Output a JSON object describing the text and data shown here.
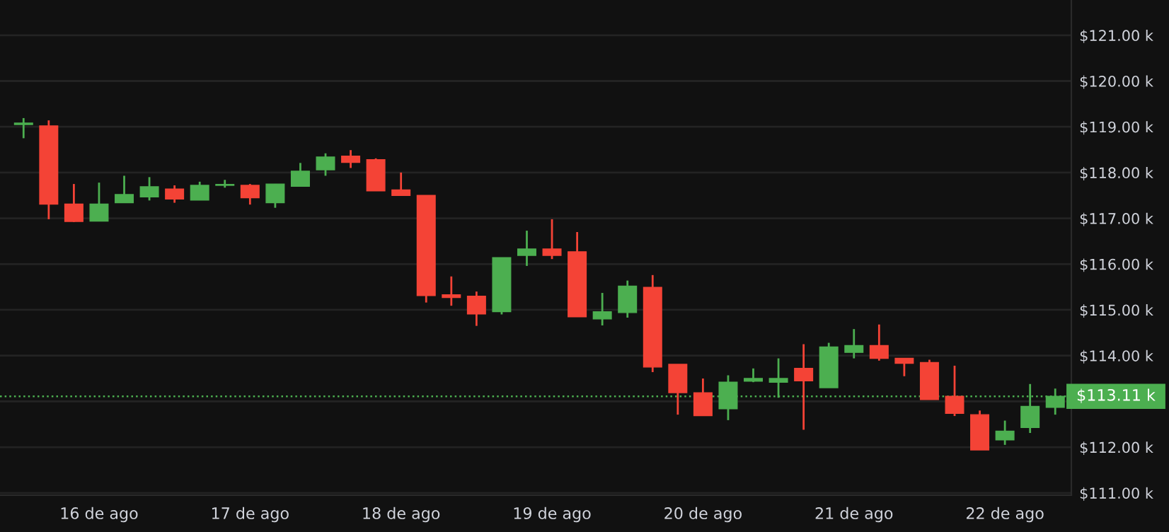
{
  "chart_data": {
    "type": "candlestick",
    "x": [
      15.5,
      15.6667,
      15.8333,
      16,
      16.1667,
      16.3333,
      16.5,
      16.6667,
      16.8333,
      17,
      17.1667,
      17.3333,
      17.5,
      17.6667,
      17.8333,
      18,
      18.1667,
      18.3333,
      18.5,
      18.6667,
      18.8333,
      19,
      19.1667,
      19.3333,
      19.5,
      19.6667,
      19.8333,
      20,
      20.1667,
      20.3333,
      20.5,
      20.6667,
      20.8333,
      21,
      21.1667,
      21.3333,
      21.5,
      21.6667,
      21.8333,
      22,
      22.1667,
      22.3333
    ],
    "ohlc": [
      [
        119.05,
        119.19,
        118.75,
        119.08
      ],
      [
        119.02,
        119.14,
        116.98,
        117.31
      ],
      [
        117.31,
        117.75,
        116.92,
        116.93
      ],
      [
        116.94,
        117.78,
        116.94,
        117.31
      ],
      [
        117.34,
        117.93,
        117.34,
        117.52
      ],
      [
        117.47,
        117.9,
        117.39,
        117.69
      ],
      [
        117.64,
        117.72,
        117.34,
        117.42
      ],
      [
        117.4,
        117.8,
        117.4,
        117.72
      ],
      [
        117.72,
        117.84,
        117.67,
        117.74
      ],
      [
        117.72,
        117.75,
        117.3,
        117.45
      ],
      [
        117.34,
        117.75,
        117.23,
        117.75
      ],
      [
        117.7,
        118.21,
        117.7,
        118.03
      ],
      [
        118.06,
        118.42,
        117.93,
        118.34
      ],
      [
        118.36,
        118.49,
        118.1,
        118.22
      ],
      [
        118.28,
        118.31,
        117.6,
        117.6
      ],
      [
        117.62,
        118.0,
        117.5,
        117.5
      ],
      [
        117.5,
        117.5,
        115.16,
        115.31
      ],
      [
        115.33,
        115.73,
        115.09,
        115.27
      ],
      [
        115.3,
        115.4,
        114.65,
        114.91
      ],
      [
        114.96,
        116.14,
        114.9,
        116.14
      ],
      [
        116.19,
        116.73,
        115.96,
        116.33
      ],
      [
        116.33,
        116.98,
        116.11,
        116.19
      ],
      [
        116.27,
        116.7,
        114.85,
        114.85
      ],
      [
        114.8,
        115.37,
        114.66,
        114.96
      ],
      [
        114.94,
        115.64,
        114.83,
        115.52
      ],
      [
        115.49,
        115.76,
        113.64,
        113.75
      ],
      [
        113.81,
        113.81,
        112.71,
        113.19
      ],
      [
        113.19,
        113.5,
        112.69,
        112.69
      ],
      [
        112.84,
        113.57,
        112.59,
        113.42
      ],
      [
        113.44,
        113.72,
        113.42,
        113.5
      ],
      [
        113.42,
        113.94,
        113.08,
        113.5
      ],
      [
        113.72,
        114.25,
        112.38,
        113.45
      ],
      [
        113.3,
        114.28,
        113.3,
        114.19
      ],
      [
        114.07,
        114.58,
        113.94,
        114.22
      ],
      [
        114.22,
        114.68,
        113.89,
        113.94
      ],
      [
        113.94,
        113.94,
        113.55,
        113.83
      ],
      [
        113.85,
        113.91,
        113.04,
        113.04
      ],
      [
        113.11,
        113.78,
        112.68,
        112.74
      ],
      [
        112.71,
        112.8,
        111.94,
        111.94
      ],
      [
        112.16,
        112.58,
        112.05,
        112.35
      ],
      [
        112.43,
        113.38,
        112.31,
        112.89
      ],
      [
        112.87,
        113.28,
        112.71,
        113.11
      ]
    ],
    "colors": [
      "#4caf50",
      "#f44336",
      "#f44336",
      "#4caf50",
      "#4caf50",
      "#4caf50",
      "#f44336",
      "#4caf50",
      "#4caf50",
      "#f44336",
      "#4caf50",
      "#4caf50",
      "#4caf50",
      "#f44336",
      "#f44336",
      "#f44336",
      "#f44336",
      "#f44336",
      "#f44336",
      "#4caf50",
      "#4caf50",
      "#f44336",
      "#f44336",
      "#4caf50",
      "#4caf50",
      "#f44336",
      "#f44336",
      "#f44336",
      "#4caf50",
      "#4caf50",
      "#4caf50",
      "#f44336",
      "#4caf50",
      "#4caf50",
      "#f44336",
      "#f44336",
      "#f44336",
      "#f44336",
      "#f44336",
      "#4caf50",
      "#4caf50",
      "#4caf50"
    ],
    "xlim": [
      15.344,
      22.44
    ],
    "xticks": [
      {
        "value": 16,
        "label": "16 de ago"
      },
      {
        "value": 17,
        "label": "17 de ago"
      },
      {
        "value": 18,
        "label": "18 de ago"
      },
      {
        "value": 19,
        "label": "19 de ago"
      },
      {
        "value": 20,
        "label": "20 de ago"
      },
      {
        "value": 21,
        "label": "21 de ago"
      },
      {
        "value": 22,
        "label": "22 de ago"
      }
    ],
    "ylim": [
      110.95,
      121.77
    ],
    "yticks": [
      {
        "value": 111,
        "label": "$111.00 k"
      },
      {
        "value": 112,
        "label": "$112.00 k"
      },
      {
        "value": 113,
        "label": null
      },
      {
        "value": 114,
        "label": "$114.00 k"
      },
      {
        "value": 115,
        "label": "$115.00 k"
      },
      {
        "value": 116,
        "label": "$116.00 k"
      },
      {
        "value": 117,
        "label": "$117.00 k"
      },
      {
        "value": 118,
        "label": "$118.00 k"
      },
      {
        "value": 119,
        "label": "$119.00 k"
      },
      {
        "value": 120,
        "label": "$120.00 k"
      },
      {
        "value": 121,
        "label": "$121.00 k"
      }
    ],
    "ref_lines": [
      {
        "axis": "y",
        "value": 113.11,
        "label": "$113.11 k",
        "color": "#4caf50",
        "line_style": "dotted"
      }
    ],
    "grid": "y"
  }
}
